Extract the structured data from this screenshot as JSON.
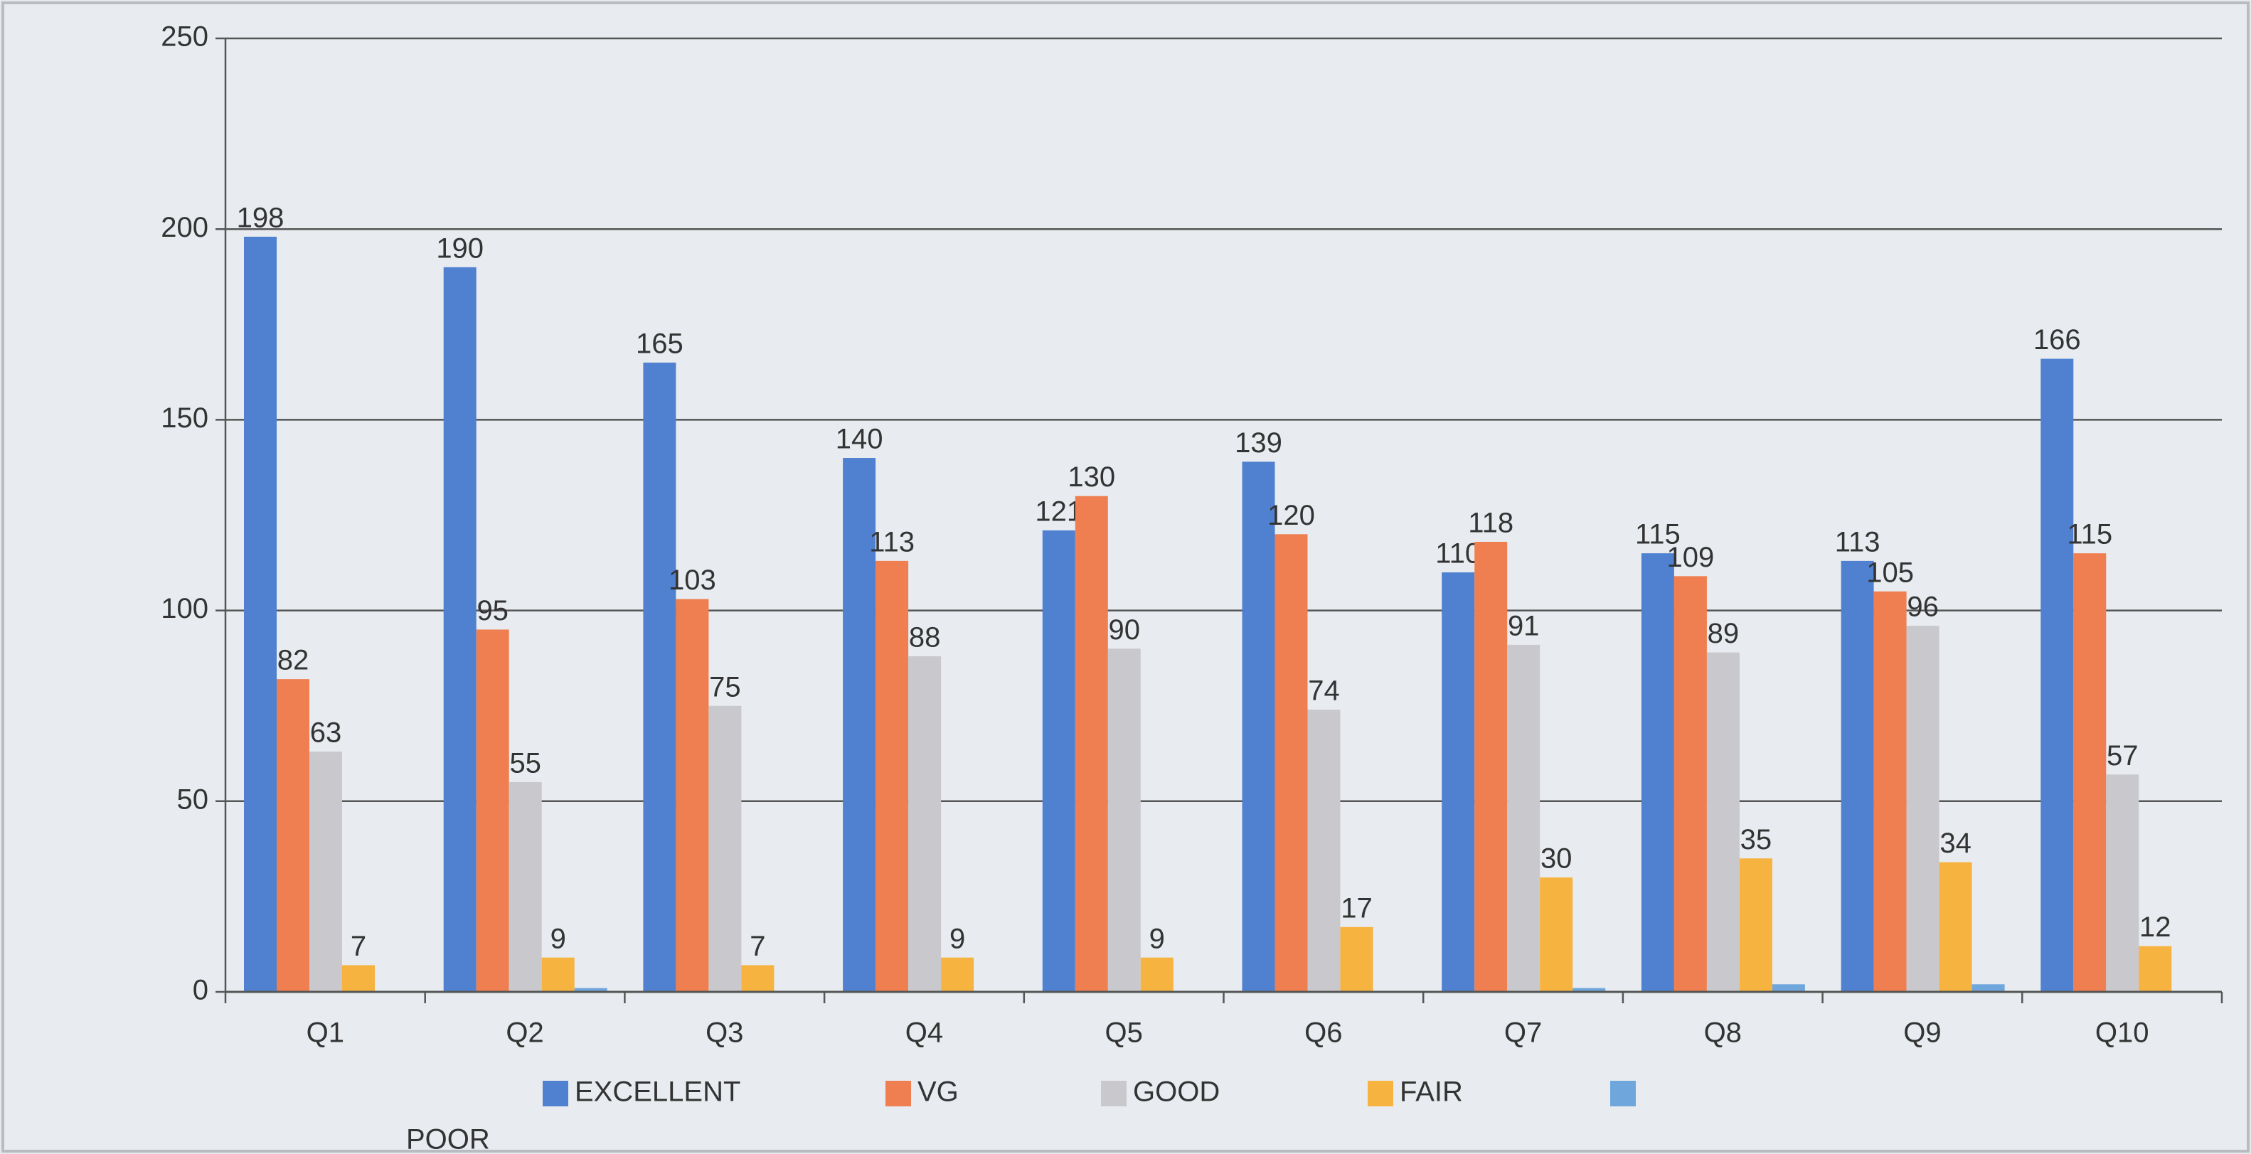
{
  "chart_data": {
    "type": "bar",
    "categories": [
      "Q1",
      "Q2",
      "Q3",
      "Q4",
      "Q5",
      "Q6",
      "Q7",
      "Q8",
      "Q9",
      "Q10"
    ],
    "series": [
      {
        "name": "EXCELLENT",
        "color": "#4f81d0",
        "show_labels": true,
        "values": [
          198,
          190,
          165,
          140,
          121,
          139,
          110,
          115,
          113,
          166
        ]
      },
      {
        "name": "VG",
        "color": "#ef7e50",
        "show_labels": true,
        "values": [
          82,
          95,
          103,
          113,
          130,
          120,
          118,
          109,
          105,
          115
        ]
      },
      {
        "name": "GOOD",
        "color": "#c9c9cd",
        "show_labels": true,
        "values": [
          63,
          55,
          75,
          88,
          90,
          74,
          91,
          89,
          96,
          57
        ]
      },
      {
        "name": "FAIR",
        "color": "#f7b33f",
        "show_labels": true,
        "values": [
          7,
          9,
          7,
          9,
          9,
          17,
          30,
          35,
          34,
          12
        ]
      },
      {
        "name": "POOR",
        "color": "#6fa7dd",
        "show_labels": false,
        "values": [
          0,
          1,
          0,
          0,
          0,
          0,
          1,
          2,
          2,
          0
        ]
      }
    ],
    "ylim": [
      0,
      250
    ],
    "yticks": [
      0,
      50,
      100,
      150,
      200,
      250
    ],
    "grid": true
  }
}
